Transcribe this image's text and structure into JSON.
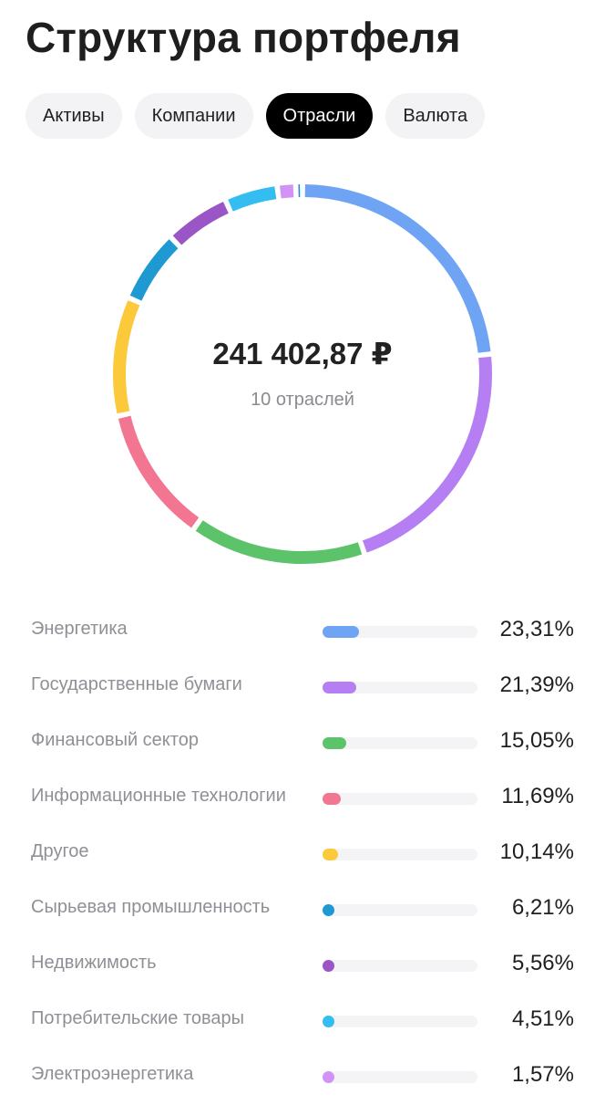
{
  "page": {
    "title": "Структура портфеля"
  },
  "tabs": [
    {
      "label": "Активы",
      "active": false
    },
    {
      "label": "Компании",
      "active": false
    },
    {
      "label": "Отрасли",
      "active": true
    },
    {
      "label": "Валюта",
      "active": false
    }
  ],
  "chart_data": {
    "type": "pie",
    "total_label": "241 402,87 ₽",
    "subtitle": "10 отраслей",
    "categories": [
      "Энергетика",
      "Государственные бумаги",
      "Финансовый сектор",
      "Информационные технологии",
      "Другое",
      "Сырьевая промышленность",
      "Недвижимость",
      "Потребительские товары",
      "Электроэнергетика",
      ""
    ],
    "values": [
      23.31,
      21.39,
      15.05,
      11.69,
      10.14,
      6.21,
      5.56,
      4.51,
      1.57,
      0.57
    ],
    "value_labels": [
      "23,31%",
      "21,39%",
      "15,05%",
      "11,69%",
      "10,14%",
      "6,21%",
      "5,56%",
      "4,51%",
      "1,57%",
      ""
    ],
    "colors": [
      "#6fa4f5",
      "#b57ef2",
      "#5cc36a",
      "#f27692",
      "#fbc93a",
      "#1e99d2",
      "#9a56c6",
      "#33bdf1",
      "#d193f5",
      "#1d8fd0"
    ],
    "legend_rows_visible": 9
  }
}
